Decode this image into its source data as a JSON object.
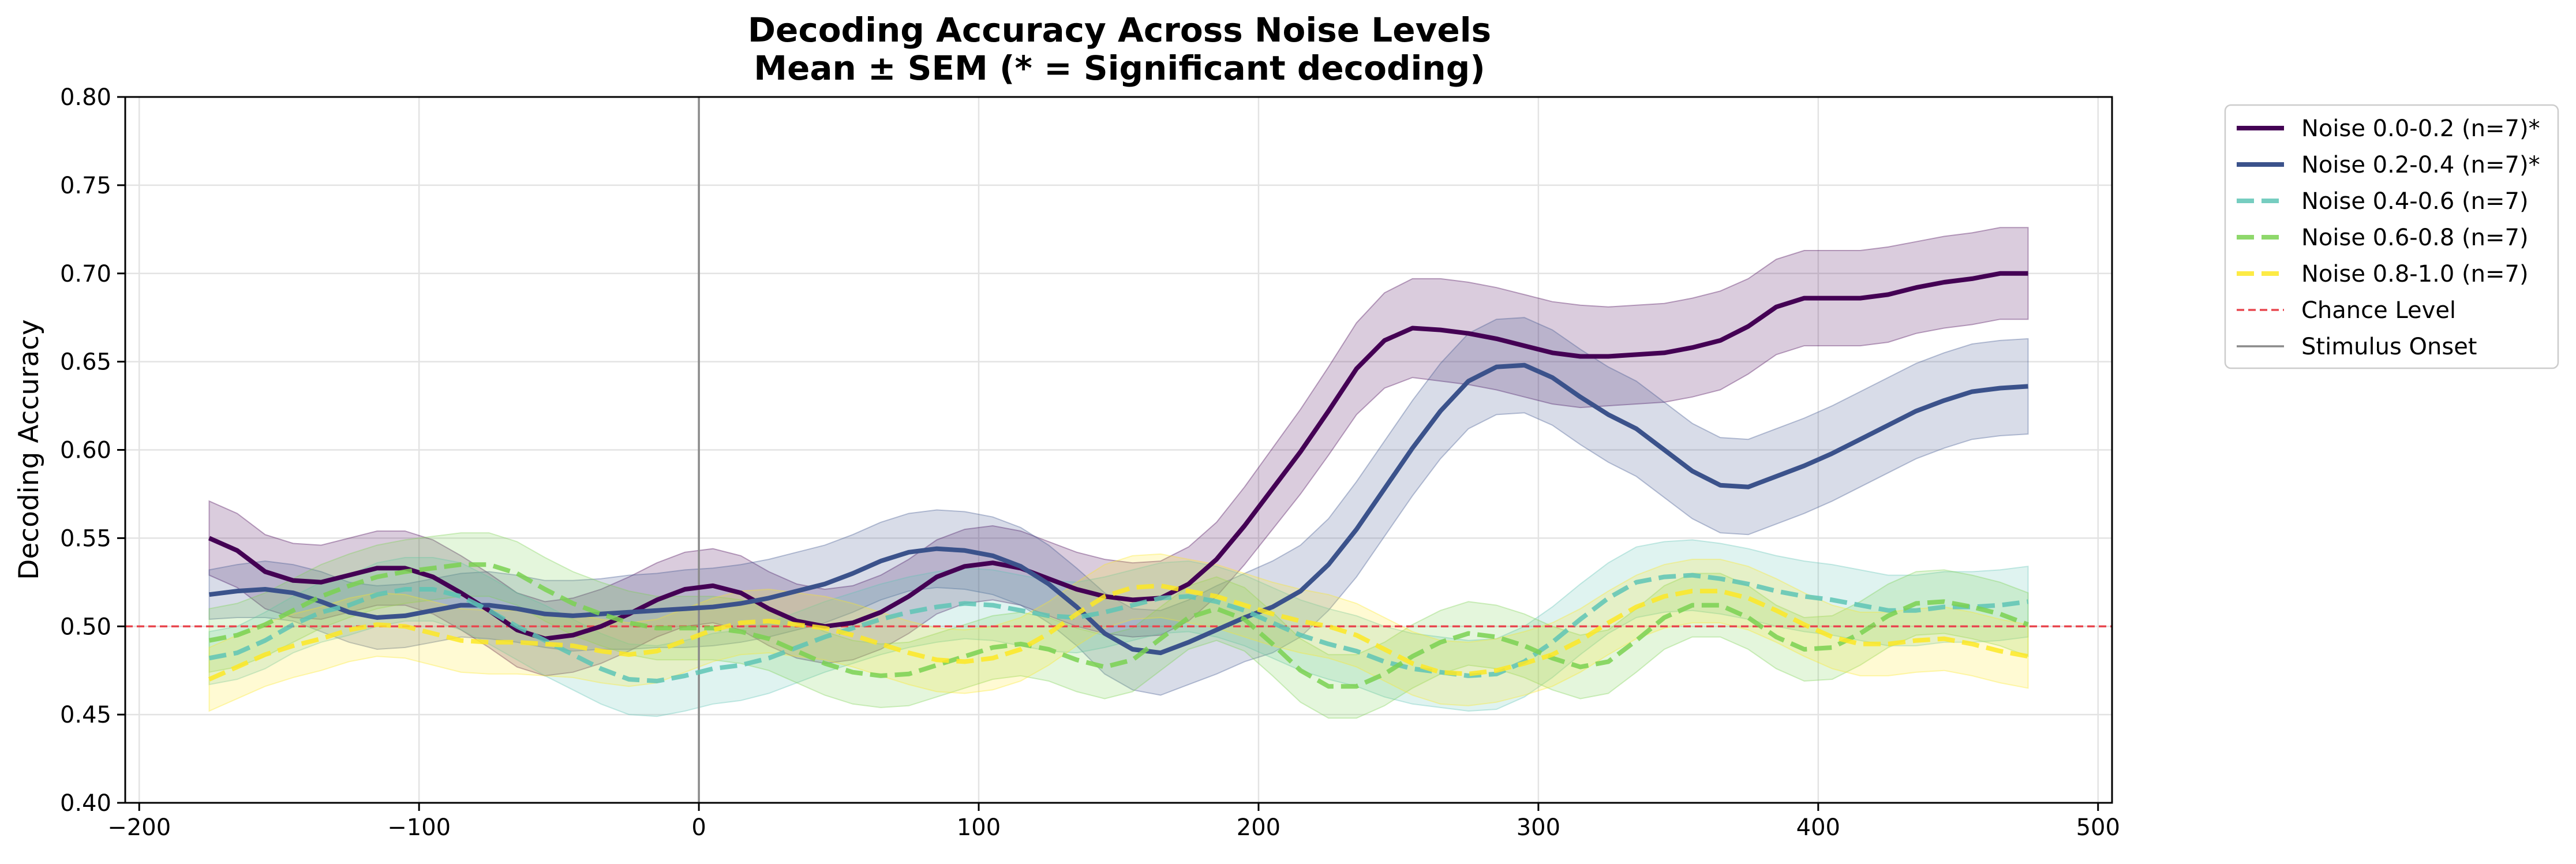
{
  "chart_data": {
    "type": "line",
    "title": "Decoding Accuracy Across Noise Levels",
    "subtitle": "Mean ± SEM (* = Significant decoding)",
    "xlabel": "",
    "ylabel": "Decoding Accuracy",
    "xlim": [
      -205,
      505
    ],
    "ylim": [
      0.4,
      0.8
    ],
    "xticks": [
      -200,
      -100,
      0,
      100,
      200,
      300,
      400,
      500
    ],
    "xtick_labels": [
      "−200",
      "−100",
      "0",
      "100",
      "200",
      "300",
      "400",
      "500"
    ],
    "yticks": [
      0.4,
      0.45,
      0.5,
      0.55,
      0.6,
      0.65,
      0.7,
      0.75,
      0.8
    ],
    "ytick_labels": [
      "0.40",
      "0.45",
      "0.50",
      "0.55",
      "0.60",
      "0.65",
      "0.70",
      "0.75",
      "0.80"
    ],
    "grid": true,
    "legend_position": "outside-top-right",
    "chance_level": {
      "label": "Chance Level",
      "y": 0.5,
      "color": "#e8474f",
      "style": "dashed"
    },
    "stimulus_onset": {
      "label": "Stimulus Onset",
      "x": 0,
      "color": "#8a8a8a",
      "style": "solid"
    },
    "x": [
      -175,
      -165,
      -155,
      -145,
      -135,
      -125,
      -115,
      -105,
      -95,
      -85,
      -75,
      -65,
      -55,
      -45,
      -35,
      -25,
      -15,
      -5,
      5,
      15,
      25,
      35,
      45,
      55,
      65,
      75,
      85,
      95,
      105,
      115,
      125,
      135,
      145,
      155,
      165,
      175,
      185,
      195,
      205,
      215,
      225,
      235,
      245,
      255,
      265,
      275,
      285,
      295,
      305,
      315,
      325,
      335,
      345,
      355,
      365,
      375,
      385,
      395,
      405,
      415,
      425,
      435,
      445,
      455,
      465,
      475
    ],
    "series": [
      {
        "name": "Noise 0.0-0.2 (n=7)*",
        "color": "#440154",
        "style": "solid",
        "values": [
          0.55,
          0.543,
          0.531,
          0.526,
          0.525,
          0.529,
          0.533,
          0.533,
          0.528,
          0.519,
          0.509,
          0.498,
          0.493,
          0.495,
          0.5,
          0.507,
          0.515,
          0.521,
          0.523,
          0.519,
          0.51,
          0.503,
          0.5,
          0.502,
          0.508,
          0.517,
          0.528,
          0.534,
          0.536,
          0.533,
          0.527,
          0.521,
          0.517,
          0.515,
          0.516,
          0.524,
          0.538,
          0.557,
          0.578,
          0.599,
          0.622,
          0.646,
          0.662,
          0.669,
          0.668,
          0.666,
          0.663,
          0.659,
          0.655,
          0.653,
          0.653,
          0.654,
          0.655,
          0.658,
          0.662,
          0.67,
          0.681,
          0.686,
          0.686,
          0.686,
          0.688,
          0.692,
          0.695,
          0.697,
          0.7,
          0.7
        ],
        "sem": [
          0.021,
          0.021,
          0.021,
          0.021,
          0.021,
          0.021,
          0.021,
          0.021,
          0.021,
          0.021,
          0.021,
          0.021,
          0.021,
          0.021,
          0.021,
          0.021,
          0.021,
          0.021,
          0.021,
          0.021,
          0.021,
          0.021,
          0.021,
          0.021,
          0.021,
          0.021,
          0.021,
          0.021,
          0.021,
          0.021,
          0.021,
          0.021,
          0.021,
          0.021,
          0.021,
          0.021,
          0.021,
          0.022,
          0.023,
          0.024,
          0.025,
          0.026,
          0.027,
          0.028,
          0.029,
          0.029,
          0.029,
          0.029,
          0.029,
          0.029,
          0.028,
          0.028,
          0.028,
          0.028,
          0.028,
          0.027,
          0.027,
          0.027,
          0.027,
          0.027,
          0.027,
          0.026,
          0.026,
          0.026,
          0.026,
          0.026
        ]
      },
      {
        "name": "Noise 0.2-0.4 (n=7)*",
        "color": "#3b528b",
        "style": "solid",
        "values": [
          0.518,
          0.52,
          0.521,
          0.519,
          0.514,
          0.508,
          0.505,
          0.506,
          0.509,
          0.512,
          0.512,
          0.51,
          0.507,
          0.506,
          0.507,
          0.508,
          0.509,
          0.51,
          0.511,
          0.513,
          0.516,
          0.52,
          0.524,
          0.53,
          0.537,
          0.542,
          0.544,
          0.543,
          0.54,
          0.534,
          0.524,
          0.511,
          0.496,
          0.487,
          0.485,
          0.491,
          0.498,
          0.505,
          0.511,
          0.52,
          0.535,
          0.555,
          0.578,
          0.601,
          0.622,
          0.639,
          0.647,
          0.648,
          0.641,
          0.63,
          0.62,
          0.612,
          0.6,
          0.588,
          0.58,
          0.579,
          0.585,
          0.591,
          0.598,
          0.606,
          0.614,
          0.622,
          0.628,
          0.633,
          0.635,
          0.636
        ],
        "sem": [
          0.014,
          0.015,
          0.016,
          0.016,
          0.017,
          0.017,
          0.018,
          0.018,
          0.018,
          0.018,
          0.019,
          0.019,
          0.019,
          0.02,
          0.02,
          0.021,
          0.021,
          0.022,
          0.022,
          0.022,
          0.022,
          0.022,
          0.022,
          0.022,
          0.022,
          0.022,
          0.022,
          0.022,
          0.022,
          0.022,
          0.022,
          0.022,
          0.023,
          0.023,
          0.024,
          0.024,
          0.025,
          0.025,
          0.026,
          0.026,
          0.026,
          0.027,
          0.027,
          0.027,
          0.027,
          0.027,
          0.027,
          0.027,
          0.027,
          0.027,
          0.027,
          0.027,
          0.027,
          0.027,
          0.027,
          0.027,
          0.027,
          0.027,
          0.027,
          0.027,
          0.027,
          0.027,
          0.027,
          0.027,
          0.027,
          0.027
        ]
      },
      {
        "name": "Noise 0.4-0.6 (n=7)",
        "color": "#5ec4b5",
        "style": "dashed",
        "values": [
          0.482,
          0.485,
          0.492,
          0.501,
          0.508,
          0.512,
          0.518,
          0.521,
          0.521,
          0.517,
          0.509,
          0.5,
          0.492,
          0.484,
          0.476,
          0.47,
          0.469,
          0.472,
          0.476,
          0.478,
          0.482,
          0.488,
          0.494,
          0.499,
          0.504,
          0.508,
          0.511,
          0.513,
          0.512,
          0.509,
          0.506,
          0.505,
          0.508,
          0.512,
          0.516,
          0.517,
          0.514,
          0.509,
          0.502,
          0.495,
          0.49,
          0.486,
          0.48,
          0.476,
          0.474,
          0.472,
          0.473,
          0.48,
          0.491,
          0.504,
          0.516,
          0.525,
          0.528,
          0.529,
          0.527,
          0.524,
          0.52,
          0.517,
          0.515,
          0.512,
          0.509,
          0.509,
          0.511,
          0.511,
          0.512,
          0.514
        ],
        "sem": [
          0.015,
          0.015,
          0.016,
          0.016,
          0.017,
          0.017,
          0.018,
          0.018,
          0.018,
          0.019,
          0.019,
          0.019,
          0.02,
          0.02,
          0.02,
          0.02,
          0.02,
          0.02,
          0.02,
          0.02,
          0.02,
          0.02,
          0.02,
          0.02,
          0.02,
          0.02,
          0.02,
          0.02,
          0.02,
          0.02,
          0.02,
          0.02,
          0.02,
          0.02,
          0.02,
          0.02,
          0.02,
          0.02,
          0.02,
          0.02,
          0.02,
          0.02,
          0.02,
          0.02,
          0.02,
          0.02,
          0.02,
          0.02,
          0.02,
          0.02,
          0.02,
          0.02,
          0.02,
          0.02,
          0.02,
          0.02,
          0.02,
          0.02,
          0.02,
          0.02,
          0.02,
          0.02,
          0.02,
          0.02,
          0.02,
          0.02
        ]
      },
      {
        "name": "Noise 0.6-0.8 (n=7)",
        "color": "#7ad151",
        "style": "dashed",
        "values": [
          0.492,
          0.495,
          0.501,
          0.509,
          0.517,
          0.523,
          0.528,
          0.531,
          0.533,
          0.535,
          0.535,
          0.53,
          0.521,
          0.513,
          0.507,
          0.502,
          0.499,
          0.499,
          0.499,
          0.497,
          0.493,
          0.486,
          0.479,
          0.474,
          0.472,
          0.473,
          0.478,
          0.483,
          0.488,
          0.49,
          0.487,
          0.481,
          0.477,
          0.481,
          0.493,
          0.505,
          0.51,
          0.504,
          0.49,
          0.475,
          0.466,
          0.466,
          0.473,
          0.483,
          0.491,
          0.496,
          0.494,
          0.489,
          0.482,
          0.477,
          0.48,
          0.492,
          0.505,
          0.512,
          0.512,
          0.505,
          0.494,
          0.487,
          0.488,
          0.496,
          0.506,
          0.513,
          0.514,
          0.511,
          0.507,
          0.501
        ],
        "sem": [
          0.018,
          0.018,
          0.018,
          0.018,
          0.018,
          0.018,
          0.018,
          0.018,
          0.018,
          0.018,
          0.018,
          0.018,
          0.018,
          0.018,
          0.018,
          0.018,
          0.018,
          0.018,
          0.018,
          0.018,
          0.018,
          0.018,
          0.018,
          0.018,
          0.018,
          0.018,
          0.018,
          0.018,
          0.018,
          0.018,
          0.018,
          0.018,
          0.018,
          0.018,
          0.018,
          0.018,
          0.018,
          0.018,
          0.018,
          0.018,
          0.018,
          0.018,
          0.018,
          0.018,
          0.018,
          0.018,
          0.018,
          0.018,
          0.018,
          0.018,
          0.018,
          0.018,
          0.018,
          0.018,
          0.018,
          0.018,
          0.018,
          0.018,
          0.018,
          0.018,
          0.018,
          0.018,
          0.018,
          0.018,
          0.018,
          0.018
        ]
      },
      {
        "name": "Noise 0.8-1.0 (n=7)",
        "color": "#fde725",
        "style": "dashed",
        "values": [
          0.47,
          0.477,
          0.484,
          0.489,
          0.493,
          0.498,
          0.501,
          0.5,
          0.496,
          0.492,
          0.491,
          0.491,
          0.49,
          0.489,
          0.486,
          0.484,
          0.486,
          0.492,
          0.498,
          0.502,
          0.503,
          0.501,
          0.499,
          0.495,
          0.49,
          0.485,
          0.481,
          0.48,
          0.482,
          0.487,
          0.496,
          0.507,
          0.517,
          0.522,
          0.523,
          0.52,
          0.517,
          0.512,
          0.507,
          0.503,
          0.5,
          0.495,
          0.487,
          0.479,
          0.474,
          0.473,
          0.475,
          0.479,
          0.484,
          0.492,
          0.502,
          0.511,
          0.517,
          0.52,
          0.52,
          0.516,
          0.509,
          0.501,
          0.494,
          0.49,
          0.49,
          0.492,
          0.493,
          0.49,
          0.486,
          0.483
        ],
        "sem": [
          0.018,
          0.018,
          0.018,
          0.018,
          0.018,
          0.018,
          0.018,
          0.018,
          0.018,
          0.018,
          0.018,
          0.018,
          0.018,
          0.018,
          0.018,
          0.018,
          0.018,
          0.018,
          0.018,
          0.018,
          0.018,
          0.018,
          0.018,
          0.018,
          0.018,
          0.018,
          0.018,
          0.018,
          0.018,
          0.018,
          0.018,
          0.018,
          0.018,
          0.018,
          0.018,
          0.018,
          0.018,
          0.018,
          0.018,
          0.018,
          0.018,
          0.018,
          0.018,
          0.018,
          0.018,
          0.018,
          0.018,
          0.018,
          0.018,
          0.018,
          0.018,
          0.018,
          0.018,
          0.018,
          0.018,
          0.018,
          0.018,
          0.018,
          0.018,
          0.018,
          0.018,
          0.018,
          0.018,
          0.018,
          0.018,
          0.018
        ]
      }
    ]
  }
}
